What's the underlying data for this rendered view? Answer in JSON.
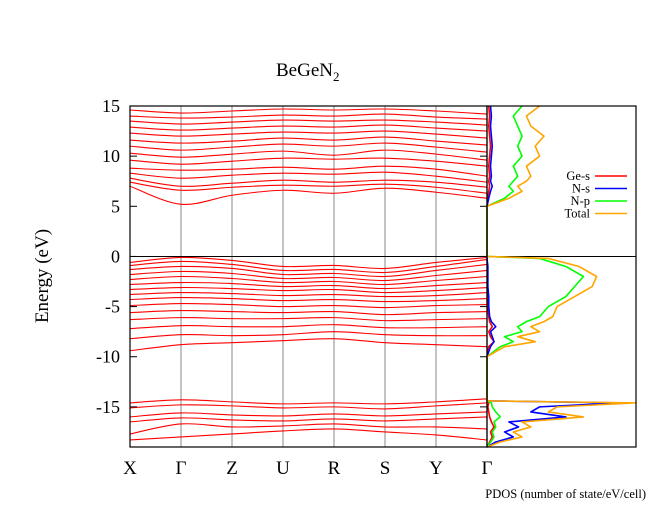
{
  "chart_data": {
    "type": "line",
    "title_main": "BeGeN",
    "title_sub": "2",
    "ylabel": "Energy (eV)",
    "ylim": [
      -19,
      15
    ],
    "y_ticks": [
      15,
      10,
      5,
      0,
      -5,
      -10,
      -15
    ],
    "y_tick_labels": [
      "15",
      "10",
      "5",
      "0",
      "-5",
      "-10",
      "-15"
    ],
    "k_points": [
      "X",
      "Γ",
      "Z",
      "U",
      "R",
      "S",
      "Y",
      "Γ"
    ],
    "k_positions": [
      0,
      1,
      2,
      3,
      4,
      5,
      6,
      7
    ],
    "fermi_level": 0,
    "band_color": "#ff0000",
    "bands": {
      "conduction": [
        [
          7.0,
          5.2,
          6.1,
          6.6,
          6.3,
          6.8,
          6.4,
          5.8
        ],
        [
          7.4,
          6.6,
          6.9,
          7.1,
          7.0,
          7.2,
          6.9,
          6.3
        ],
        [
          7.8,
          7.0,
          7.3,
          7.6,
          7.4,
          7.6,
          7.4,
          6.9
        ],
        [
          8.3,
          7.8,
          8.1,
          8.3,
          8.2,
          8.4,
          8.0,
          7.4
        ],
        [
          8.8,
          8.6,
          8.7,
          8.9,
          8.7,
          9.0,
          8.7,
          8.0
        ],
        [
          9.6,
          9.2,
          9.5,
          9.8,
          9.7,
          9.8,
          9.5,
          9.0
        ],
        [
          10.3,
          9.9,
          10.2,
          10.5,
          10.1,
          10.6,
          10.2,
          9.6
        ],
        [
          11.0,
          10.6,
          10.9,
          11.2,
          11.0,
          11.3,
          10.9,
          10.4
        ],
        [
          11.6,
          11.3,
          11.5,
          11.8,
          11.6,
          11.9,
          11.5,
          11.1
        ],
        [
          12.3,
          12.0,
          12.2,
          12.4,
          12.3,
          12.5,
          12.2,
          11.8
        ],
        [
          12.9,
          12.6,
          12.8,
          13.0,
          12.9,
          13.1,
          12.8,
          12.5
        ],
        [
          13.5,
          13.2,
          13.4,
          13.6,
          13.5,
          13.6,
          13.4,
          13.1
        ],
        [
          14.0,
          13.8,
          13.9,
          14.1,
          14.0,
          14.2,
          13.9,
          13.7
        ],
        [
          14.6,
          14.3,
          14.5,
          14.7,
          14.6,
          14.7,
          14.5,
          14.2
        ]
      ],
      "valence": [
        [
          -0.6,
          -0.1,
          -0.4,
          -1.0,
          -0.9,
          -1.2,
          -0.6,
          -0.1
        ],
        [
          -0.9,
          -0.5,
          -0.8,
          -1.4,
          -1.3,
          -1.6,
          -1.0,
          -0.3
        ],
        [
          -1.3,
          -1.0,
          -1.2,
          -1.8,
          -1.7,
          -2.0,
          -1.4,
          -0.8
        ],
        [
          -1.8,
          -1.5,
          -1.7,
          -2.2,
          -2.1,
          -2.4,
          -1.9,
          -1.4
        ],
        [
          -2.3,
          -2.0,
          -2.2,
          -2.6,
          -2.5,
          -2.8,
          -2.4,
          -2.0
        ],
        [
          -2.8,
          -2.6,
          -2.7,
          -3.0,
          -2.9,
          -3.2,
          -2.9,
          -2.6
        ],
        [
          -3.3,
          -3.1,
          -3.2,
          -3.4,
          -3.3,
          -3.6,
          -3.4,
          -3.1
        ],
        [
          -3.8,
          -3.6,
          -3.7,
          -3.9,
          -3.8,
          -4.0,
          -3.9,
          -3.6
        ],
        [
          -4.3,
          -4.1,
          -4.2,
          -4.4,
          -4.3,
          -4.5,
          -4.4,
          -4.2
        ],
        [
          -4.9,
          -4.7,
          -4.8,
          -5.0,
          -4.9,
          -5.1,
          -4.9,
          -4.8
        ],
        [
          -5.6,
          -5.4,
          -5.5,
          -5.6,
          -5.5,
          -5.8,
          -5.6,
          -5.5
        ],
        [
          -6.3,
          -6.1,
          -6.2,
          -6.2,
          -6.1,
          -6.4,
          -6.3,
          -6.2
        ],
        [
          -7.2,
          -6.9,
          -7.0,
          -7.0,
          -6.8,
          -7.1,
          -7.1,
          -7.0
        ],
        [
          -8.2,
          -7.8,
          -7.9,
          -7.8,
          -7.5,
          -7.8,
          -7.9,
          -7.9
        ],
        [
          -9.4,
          -8.8,
          -8.6,
          -8.4,
          -8.2,
          -8.6,
          -8.8,
          -9.0
        ]
      ],
      "lower": [
        [
          -14.6,
          -14.3,
          -14.5,
          -14.7,
          -14.6,
          -14.7,
          -14.5,
          -14.2
        ],
        [
          -15.1,
          -14.8,
          -14.9,
          -15.1,
          -15.0,
          -15.2,
          -14.9,
          -14.6
        ],
        [
          -16.0,
          -15.6,
          -15.8,
          -15.9,
          -15.7,
          -15.9,
          -15.7,
          -15.5
        ],
        [
          -16.5,
          -16.1,
          -16.3,
          -16.4,
          -16.2,
          -16.4,
          -16.2,
          -16.0
        ],
        [
          -17.7,
          -16.7,
          -17.0,
          -16.9,
          -16.7,
          -17.0,
          -17.0,
          -17.2
        ],
        [
          -18.3,
          -18.0,
          -17.7,
          -17.4,
          -17.2,
          -17.5,
          -17.8,
          -18.3
        ]
      ]
    },
    "pdos": {
      "xlabel": "PDOS (number of state/eV/cell)",
      "legend_position": "right",
      "series": [
        {
          "name": "Ge-s",
          "color": "#ff0000",
          "y": [
            -19,
            -18.5,
            -18,
            -17.5,
            -17,
            -16.5,
            -16,
            -15.5,
            -15,
            -14.6,
            -14.4,
            -14,
            -10,
            -9,
            -8.5,
            -8,
            -7.5,
            -7,
            -6.5,
            -6,
            -5,
            -4,
            -3,
            -2,
            -1,
            -0.2,
            0,
            5,
            5.8,
            6.5,
            7,
            7.5,
            8,
            9,
            10,
            11,
            12,
            13,
            14,
            15
          ],
          "x": [
            0,
            0.3,
            0.6,
            0.4,
            0.8,
            0.5,
            0.3,
            0.2,
            0.1,
            0.2,
            0,
            0,
            0,
            0.2,
            0.8,
            0.4,
            0.2,
            0.6,
            0.3,
            0.2,
            0.1,
            0.1,
            0.05,
            0.05,
            0.05,
            0,
            0,
            0,
            0.1,
            0.2,
            0.3,
            0.2,
            0.3,
            0.2,
            0.3,
            0.4,
            0.3,
            0.2,
            0.3,
            0.2
          ]
        },
        {
          "name": "N-s",
          "color": "#0000ff",
          "y": [
            -19,
            -18.5,
            -18,
            -17.5,
            -17,
            -16.5,
            -16,
            -15.5,
            -15,
            -14.6,
            -14.4,
            -14,
            -10,
            -9,
            -8.5,
            -8,
            -7.5,
            -7,
            -6.5,
            -6,
            -5,
            -4,
            -3,
            -2,
            -1,
            -0.2,
            0,
            5,
            5.8,
            6.5,
            7,
            7.5,
            8,
            9,
            10,
            11,
            12,
            13,
            14,
            15
          ],
          "x": [
            0,
            1.0,
            3.0,
            2.0,
            3.6,
            2.5,
            9.0,
            5.0,
            6.0,
            15.0,
            0,
            0,
            0,
            0.4,
            0.8,
            0.6,
            0.4,
            1.0,
            0.5,
            0.3,
            0.2,
            0.2,
            0.1,
            0.1,
            0.1,
            0,
            0,
            0,
            0.2,
            0.4,
            0.6,
            0.4,
            0.5,
            0.4,
            0.5,
            0.6,
            0.5,
            0.4,
            0.5,
            0.4
          ]
        },
        {
          "name": "N-p",
          "color": "#00ff00",
          "y": [
            -19,
            -18.5,
            -18,
            -17.5,
            -17,
            -16.5,
            -16,
            -15.5,
            -15,
            -14.6,
            -14.4,
            -14,
            -10,
            -9,
            -8.5,
            -8,
            -7.5,
            -7,
            -6.5,
            -6,
            -5,
            -4,
            -3,
            -2,
            -1,
            -0.2,
            0,
            5,
            5.8,
            6.5,
            7,
            7.5,
            8,
            9,
            10,
            11,
            12,
            13,
            14,
            15
          ],
          "x": [
            0,
            0.4,
            0.8,
            0.6,
            1.0,
            0.8,
            1.5,
            1.0,
            0.6,
            0.5,
            0,
            0,
            0,
            1.5,
            3.0,
            2.0,
            4.0,
            3.5,
            4.5,
            6.0,
            7.0,
            9.0,
            10.0,
            11.0,
            9.0,
            6.0,
            0,
            0,
            2.0,
            3.0,
            2.5,
            3.0,
            3.5,
            3.0,
            4.0,
            3.5,
            4.0,
            3.5,
            3.0,
            4.0
          ]
        },
        {
          "name": "Total",
          "color": "#ffa500",
          "y": [
            -19,
            -18.5,
            -18,
            -17.5,
            -17,
            -16.5,
            -16,
            -15.5,
            -15,
            -14.6,
            -14.4,
            -14,
            -10,
            -9,
            -8.5,
            -8,
            -7.5,
            -7,
            -6.5,
            -6,
            -5,
            -4,
            -3,
            -2,
            -1,
            -0.2,
            0,
            5,
            5.8,
            6.5,
            7,
            7.5,
            8,
            9,
            10,
            11,
            12,
            13,
            14,
            15
          ],
          "x": [
            0,
            1.5,
            4.0,
            3.0,
            5.0,
            4.0,
            11.0,
            7.0,
            8.0,
            17.0,
            0,
            0,
            0,
            2.0,
            5.5,
            3.5,
            6.0,
            5.0,
            6.5,
            7.5,
            8.0,
            10.0,
            12.0,
            12.5,
            10.5,
            7.0,
            0,
            0,
            2.5,
            4.0,
            3.5,
            4.5,
            5.0,
            4.5,
            6.0,
            5.5,
            6.5,
            5.0,
            4.5,
            6.0
          ]
        }
      ],
      "xlim": [
        0,
        17
      ]
    }
  }
}
